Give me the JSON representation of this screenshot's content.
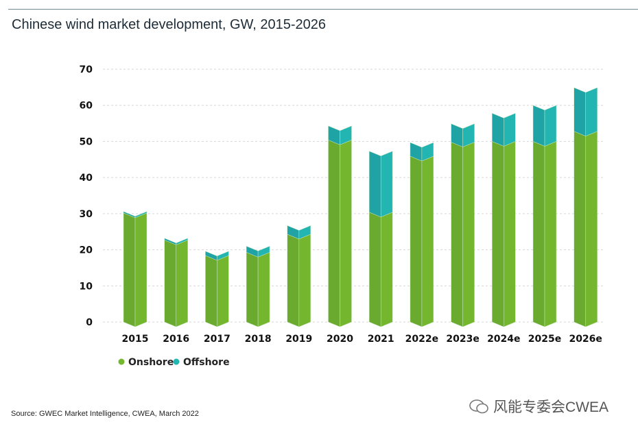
{
  "title": "Chinese wind market development, GW, 2015-2026",
  "source": "Source: GWEC Market Intelligence, CWEA, March 2022",
  "watermark": "风能专委会CWEA",
  "chart_data": {
    "type": "bar",
    "stacked": true,
    "title": "Chinese wind market development, GW, 2015-2026",
    "categories": [
      "2015",
      "2016",
      "2017",
      "2018",
      "2019",
      "2020",
      "2021",
      "2022e",
      "2023e",
      "2024e",
      "2025e",
      "2026e"
    ],
    "series": [
      {
        "name": "Onshore",
        "color": "#74b72f",
        "values": [
          30.2,
          22.7,
          18.4,
          19.3,
          24.3,
          50.4,
          30.4,
          45.9,
          49.8,
          50.0,
          50.0,
          52.8
        ]
      },
      {
        "name": "Offshore",
        "color": "#22b5b2",
        "values": [
          0.4,
          0.5,
          1.2,
          1.7,
          2.4,
          3.9,
          16.9,
          3.8,
          5.1,
          7.8,
          10.0,
          12.1
        ]
      }
    ],
    "yticks": [
      0,
      10,
      20,
      30,
      40,
      50,
      60,
      70
    ],
    "ylim": [
      0,
      70
    ],
    "grid": true,
    "legend": "bottom-left"
  }
}
